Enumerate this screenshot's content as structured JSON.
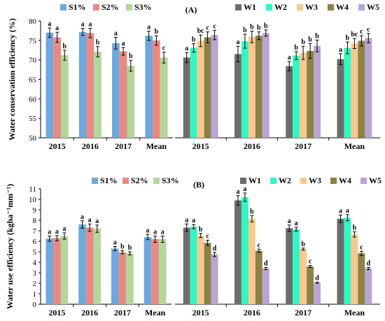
{
  "colors": {
    "S1%": "#6fa8dc",
    "S2%": "#e88a84",
    "S3%": "#b5d69b",
    "W1": "#6d6d6d",
    "W2": "#33f7c3",
    "W3": "#f7c98f",
    "W4": "#8c8245",
    "W5": "#b9a5d1",
    "error_bar": "#000000"
  },
  "chart_data": [
    {
      "type": "bar",
      "panel_label": "(A)",
      "ylabel": "Water conservation efficiency (%)",
      "ylim": [
        50,
        80
      ],
      "yticks": [
        50,
        55,
        60,
        65,
        70,
        75,
        80
      ],
      "grid": false,
      "legend_position": "top",
      "groups": [
        {
          "name": "S",
          "categories": [
            "2015",
            "2016",
            "2017",
            "Mean"
          ],
          "series": [
            {
              "name": "S1%",
              "values": [
                77.0,
                77.2,
                74.3,
                76.2
              ],
              "errors": [
                1.2,
                0.9,
                1.5,
                1.2
              ],
              "letters": [
                "a",
                "a",
                "a",
                "a"
              ]
            },
            {
              "name": "S2%",
              "values": [
                75.8,
                76.9,
                72.2,
                75.0
              ],
              "errors": [
                1.3,
                1.2,
                1.0,
                1.2
              ],
              "letters": [
                "a",
                "a",
                "a",
                "b"
              ]
            },
            {
              "name": "S3%",
              "values": [
                71.2,
                72.1,
                68.5,
                70.6
              ],
              "errors": [
                1.3,
                1.3,
                1.4,
                1.4
              ],
              "letters": [
                "b",
                "b",
                "b",
                "c"
              ]
            }
          ]
        },
        {
          "name": "W",
          "categories": [
            "2015",
            "2016",
            "2017",
            "Mean"
          ],
          "series": [
            {
              "name": "W1",
              "values": [
                70.6,
                71.5,
                68.4,
                70.2
              ],
              "errors": [
                1.3,
                2.0,
                1.2,
                1.4
              ],
              "letters": [
                "a",
                "a",
                "a",
                "a"
              ]
            },
            {
              "name": "W2",
              "values": [
                73.1,
                74.8,
                71.1,
                73.1
              ],
              "errors": [
                1.1,
                1.8,
                1.0,
                1.5
              ],
              "letters": [
                "b",
                "b",
                "b",
                "b"
              ]
            },
            {
              "name": "W3",
              "values": [
                74.9,
                75.9,
                71.8,
                74.2
              ],
              "errors": [
                1.5,
                1.5,
                1.7,
                1.3
              ],
              "letters": [
                "bc",
                "b",
                "b",
                "bc"
              ]
            },
            {
              "name": "W4",
              "values": [
                75.8,
                76.2,
                72.3,
                74.9
              ],
              "errors": [
                1.4,
                1.0,
                1.9,
                1.3
              ],
              "letters": [
                "c",
                "b",
                "b",
                "c"
              ]
            },
            {
              "name": "W5",
              "values": [
                76.4,
                76.9,
                73.6,
                75.6
              ],
              "errors": [
                1.2,
                0.8,
                1.5,
                1.2
              ],
              "letters": [
                "c",
                "b",
                "b",
                "c"
              ]
            }
          ]
        }
      ]
    },
    {
      "type": "bar",
      "panel_label": "(B)",
      "ylabel": "Water use efficiency (kgha⁻¹mm⁻¹)",
      "ylim": [
        0,
        11
      ],
      "yticks": [
        0,
        1,
        2,
        3,
        4,
        5,
        6,
        7,
        8,
        9,
        10,
        11
      ],
      "grid": false,
      "legend_position": "top",
      "groups": [
        {
          "name": "S",
          "categories": [
            "2015",
            "2016",
            "2017",
            "Mean"
          ],
          "series": [
            {
              "name": "S1%",
              "values": [
                6.25,
                7.6,
                5.3,
                6.4
              ],
              "errors": [
                0.25,
                0.35,
                0.2,
                0.25
              ],
              "letters": [
                "a",
                "a",
                "a",
                "a"
              ]
            },
            {
              "name": "S2%",
              "values": [
                6.3,
                7.3,
                4.95,
                6.2
              ],
              "errors": [
                0.25,
                0.35,
                0.15,
                0.3
              ],
              "letters": [
                "a",
                "a",
                "b",
                "a"
              ]
            },
            {
              "name": "S3%",
              "values": [
                6.5,
                7.2,
                4.85,
                6.2
              ],
              "errors": [
                0.3,
                0.35,
                0.15,
                0.3
              ],
              "letters": [
                "a",
                "a",
                "b",
                "a"
              ]
            }
          ]
        },
        {
          "name": "W",
          "categories": [
            "2015",
            "2016",
            "2017",
            "Mean"
          ],
          "series": [
            {
              "name": "W1",
              "values": [
                7.3,
                9.9,
                7.25,
                8.15
              ],
              "errors": [
                0.35,
                0.45,
                0.3,
                0.35
              ],
              "letters": [
                "a",
                "a",
                "a",
                "a"
              ]
            },
            {
              "name": "W2",
              "values": [
                7.4,
                10.2,
                7.15,
                8.25
              ],
              "errors": [
                0.2,
                0.4,
                0.2,
                0.3
              ],
              "letters": [
                "a",
                "a",
                "a",
                "a"
              ]
            },
            {
              "name": "W3",
              "values": [
                6.55,
                8.15,
                5.25,
                6.65
              ],
              "errors": [
                0.2,
                0.3,
                0.1,
                0.25
              ],
              "letters": [
                "b",
                "b",
                "b",
                "b"
              ]
            },
            {
              "name": "W4",
              "values": [
                5.85,
                5.1,
                3.6,
                4.85
              ],
              "errors": [
                0.25,
                0.15,
                0.1,
                0.2
              ],
              "letters": [
                "c",
                "c",
                "c",
                "c"
              ]
            },
            {
              "name": "W5",
              "values": [
                4.75,
                3.4,
                2.05,
                3.4
              ],
              "errors": [
                0.2,
                0.1,
                0.05,
                0.1
              ],
              "letters": [
                "d",
                "d",
                "d",
                "d"
              ]
            }
          ]
        }
      ]
    }
  ]
}
